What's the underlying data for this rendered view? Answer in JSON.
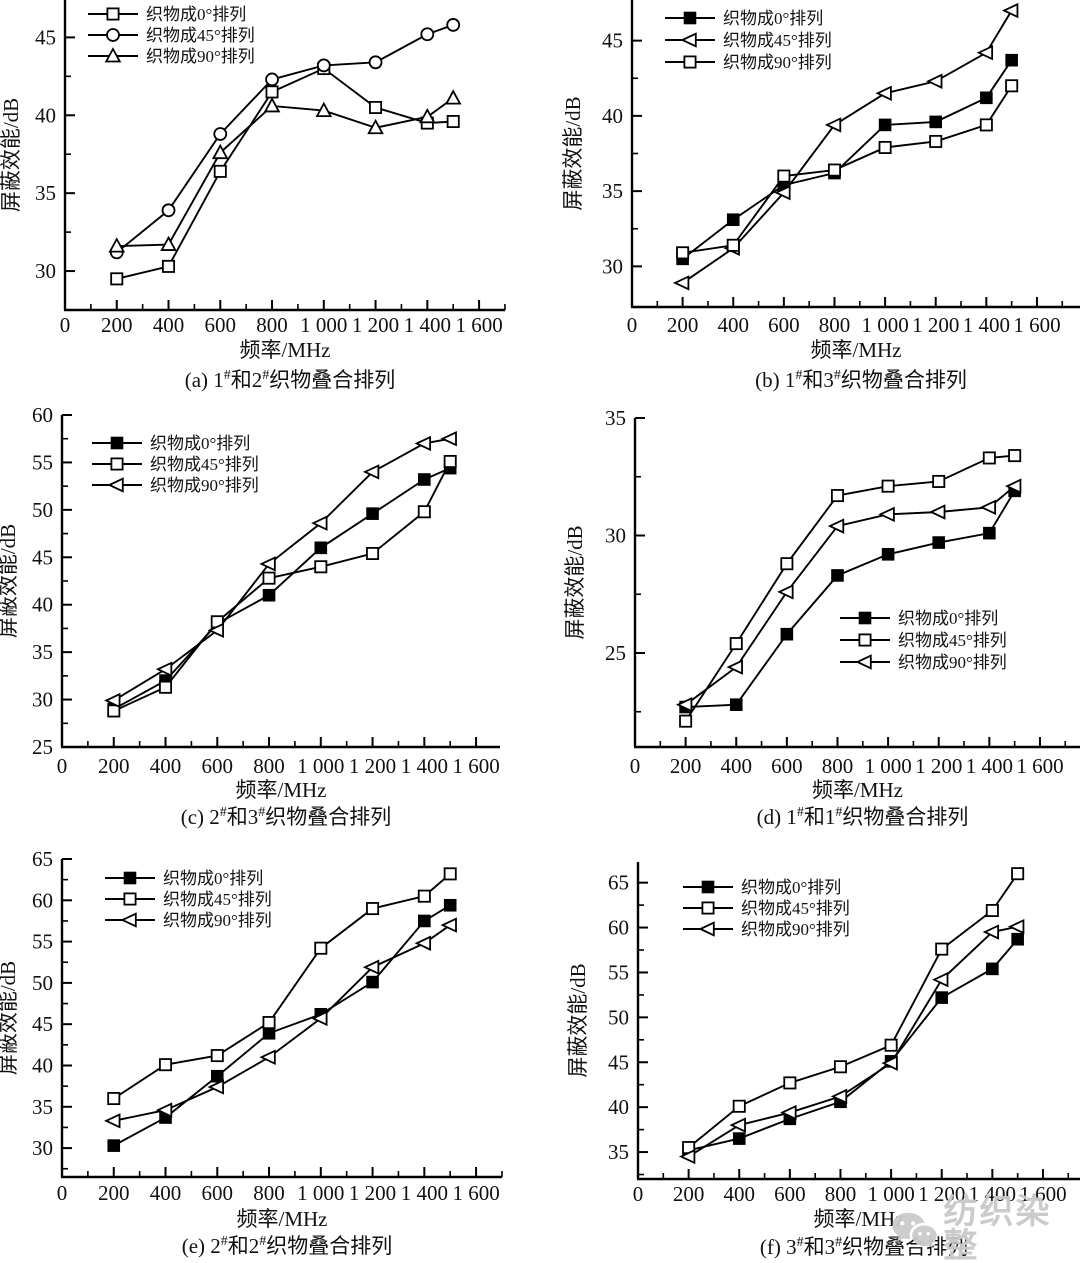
{
  "figure": {
    "background": "#ffffff",
    "ink": "#000000",
    "y_axis_label": "屏蔽效能/dB",
    "x_axis_label": "频率/MHz",
    "watermark": {
      "icon": "wechat-icon",
      "text": "纺织染整",
      "color": "#c9c9c9"
    }
  },
  "chart_data": [
    {
      "id": "a",
      "type": "line",
      "caption": "(a) 1#和2#织物叠合排列",
      "xlabel": "频率/MHz",
      "ylabel": "屏蔽效能/dB",
      "x": [
        200,
        400,
        600,
        800,
        1000,
        1200,
        1400,
        1500
      ],
      "xlim": [
        0,
        1700
      ],
      "x_ticks": {
        "values": [
          0,
          200,
          400,
          600,
          800,
          1000,
          1200,
          1400,
          1600
        ],
        "labels": [
          "0",
          "200",
          "400",
          "600",
          "800",
          "1 000",
          "1 200",
          "1 400",
          "1 600"
        ]
      },
      "ylim": [
        27.5,
        47.4
      ],
      "y_ticks": [
        30,
        35,
        40,
        45
      ],
      "grid": false,
      "legend_position": "top-left",
      "series": [
        {
          "name": "织物成0°排列",
          "marker": "square-open",
          "values": [
            29.5,
            30.3,
            36.4,
            41.5,
            43.0,
            40.5,
            39.5,
            39.6
          ]
        },
        {
          "name": "织物成45°排列",
          "marker": "circle-open",
          "values": [
            31.2,
            33.9,
            38.8,
            42.3,
            43.2,
            43.4,
            45.2,
            45.8
          ]
        },
        {
          "name": "织物成90°排列",
          "marker": "triangle-up-open",
          "values": [
            31.6,
            31.7,
            37.6,
            40.6,
            40.3,
            39.2,
            39.9,
            41.1
          ]
        }
      ]
    },
    {
      "id": "b",
      "type": "line",
      "caption": "(b) 1#和3#织物叠合排列",
      "xlabel": "频率/MHz",
      "ylabel": "屏蔽效能/dB",
      "x": [
        200,
        400,
        600,
        800,
        1000,
        1200,
        1400,
        1500
      ],
      "xlim": [
        0,
        1700
      ],
      "x_ticks": {
        "values": [
          0,
          200,
          400,
          600,
          800,
          1000,
          1200,
          1400,
          1600
        ],
        "labels": [
          "0",
          "200",
          "400",
          "600",
          "800",
          "1 000",
          "1 200",
          "1 400",
          "1 600"
        ]
      },
      "ylim": [
        27.3,
        47.7
      ],
      "y_ticks": [
        30,
        35,
        40,
        45
      ],
      "grid": false,
      "legend_position": "top-left",
      "series": [
        {
          "name": "织物成0°排列",
          "marker": "square-filled",
          "values": [
            30.5,
            33.1,
            35.4,
            36.2,
            39.4,
            39.6,
            41.2,
            43.7
          ]
        },
        {
          "name": "织物成45°排列",
          "marker": "triangle-left-open",
          "values": [
            28.9,
            31.2,
            34.9,
            39.4,
            41.5,
            42.3,
            44.2,
            47.0
          ]
        },
        {
          "name": "织物成90°排列",
          "marker": "square-open",
          "values": [
            30.9,
            31.4,
            36.0,
            36.4,
            37.9,
            38.3,
            39.4,
            42.0
          ]
        }
      ]
    },
    {
      "id": "c",
      "type": "line",
      "caption": "(c) 2#和3#织物叠合排列",
      "xlabel": "频率/MHz",
      "ylabel": "屏蔽效能/dB",
      "x": [
        200,
        400,
        600,
        800,
        1000,
        1200,
        1400,
        1500
      ],
      "xlim": [
        0,
        1700
      ],
      "x_ticks": {
        "values": [
          0,
          200,
          400,
          600,
          800,
          1000,
          1200,
          1400,
          1600
        ],
        "labels": [
          "0",
          "200",
          "400",
          "600",
          "800",
          "1 000",
          "1 200",
          "1 400",
          "1 600"
        ]
      },
      "ylim": [
        25,
        60
      ],
      "y_ticks": [
        25,
        30,
        35,
        40,
        45,
        50,
        55,
        60
      ],
      "grid": false,
      "legend_position": "top-left",
      "series": [
        {
          "name": "织物成0°排列",
          "marker": "square-filled",
          "values": [
            29.0,
            32.0,
            38.0,
            41.0,
            46.0,
            49.6,
            53.2,
            54.4
          ]
        },
        {
          "name": "织物成45°排列",
          "marker": "square-open",
          "values": [
            28.8,
            31.3,
            38.2,
            42.8,
            44.0,
            45.4,
            49.8,
            55.1
          ]
        },
        {
          "name": "织物成90°排列",
          "marker": "triangle-left-open",
          "values": [
            29.9,
            33.2,
            37.3,
            44.3,
            48.6,
            54.0,
            57.0,
            57.5
          ]
        }
      ]
    },
    {
      "id": "d",
      "type": "line",
      "caption": "(d) 1#和1#织物叠合排列",
      "xlabel": "频率/MHz",
      "ylabel": "屏蔽效能/dB",
      "x": [
        200,
        400,
        600,
        800,
        1000,
        1200,
        1400,
        1500
      ],
      "xlim": [
        0,
        1700
      ],
      "x_ticks": {
        "values": [
          0,
          200,
          400,
          600,
          800,
          1000,
          1200,
          1400,
          1600
        ],
        "labels": [
          "0",
          "200",
          "400",
          "600",
          "800",
          "1 000",
          "1 200",
          "1 400",
          "1 600"
        ]
      },
      "ylim": [
        21,
        35
      ],
      "y_ticks": [
        25,
        30,
        35
      ],
      "grid": false,
      "legend_position": "middle-right",
      "series": [
        {
          "name": "织物成0°排列",
          "marker": "square-filled",
          "values": [
            22.7,
            22.8,
            25.8,
            28.3,
            29.2,
            29.7,
            30.1,
            31.9
          ]
        },
        {
          "name": "织物成45°排列",
          "marker": "square-open",
          "values": [
            22.1,
            25.4,
            28.8,
            31.7,
            32.1,
            32.3,
            33.3,
            33.4
          ]
        },
        {
          "name": "织物成90°排列",
          "marker": "triangle-left-open",
          "values": [
            22.8,
            24.4,
            27.6,
            30.4,
            30.9,
            31.0,
            31.2,
            32.1
          ]
        }
      ]
    },
    {
      "id": "e",
      "type": "line",
      "caption": "(e) 2#和2#织物叠合排列",
      "xlabel": "频率/MHz",
      "ylabel": "屏蔽效能/dB",
      "x": [
        200,
        400,
        600,
        800,
        1000,
        1200,
        1400,
        1500
      ],
      "xlim": [
        0,
        1700
      ],
      "x_ticks": {
        "values": [
          0,
          200,
          400,
          600,
          800,
          1000,
          1200,
          1400,
          1600
        ],
        "labels": [
          "0",
          "200",
          "400",
          "600",
          "800",
          "1 000",
          "1 200",
          "1 400",
          "1 600"
        ]
      },
      "ylim": [
        26.5,
        65
      ],
      "y_ticks": [
        30,
        35,
        40,
        45,
        50,
        55,
        60,
        65
      ],
      "grid": false,
      "legend_position": "top-left",
      "series": [
        {
          "name": "织物成0°排列",
          "marker": "square-filled",
          "values": [
            30.3,
            33.7,
            38.7,
            43.9,
            46.2,
            50.1,
            57.5,
            59.4
          ]
        },
        {
          "name": "织物成45°排列",
          "marker": "square-open",
          "values": [
            36.0,
            40.1,
            41.2,
            45.2,
            54.2,
            59.0,
            60.5,
            63.2
          ]
        },
        {
          "name": "织物成90°排列",
          "marker": "triangle-left-open",
          "values": [
            33.3,
            34.6,
            37.4,
            41.0,
            45.7,
            51.9,
            54.8,
            57.0
          ]
        }
      ]
    },
    {
      "id": "f",
      "type": "line",
      "caption": "(f) 3#和3#织物叠合排列",
      "xlabel": "频率/MHz",
      "ylabel": "屏蔽效能/dB",
      "x": [
        200,
        400,
        600,
        800,
        1000,
        1200,
        1400,
        1500
      ],
      "xlim": [
        0,
        1700
      ],
      "x_ticks": {
        "values": [
          0,
          200,
          400,
          600,
          800,
          1000,
          1200,
          1400,
          1600
        ],
        "labels": [
          "0",
          "200",
          "400",
          "600",
          "800",
          "1 000",
          "1 200",
          "1 400",
          "1 600"
        ]
      },
      "ylim": [
        32,
        67.3
      ],
      "y_ticks": [
        35,
        40,
        45,
        50,
        55,
        60,
        65
      ],
      "grid": false,
      "legend_position": "top-left",
      "series": [
        {
          "name": "织物成0°排列",
          "marker": "square-filled",
          "values": [
            35.2,
            36.5,
            38.7,
            40.6,
            45.1,
            52.2,
            55.4,
            58.7
          ]
        },
        {
          "name": "织物成45°排列",
          "marker": "square-open",
          "values": [
            35.5,
            40.1,
            42.7,
            44.5,
            46.9,
            57.6,
            61.9,
            66.0
          ]
        },
        {
          "name": "织物成90°排列",
          "marker": "triangle-left-open",
          "values": [
            34.5,
            38.0,
            39.4,
            41.2,
            44.9,
            54.2,
            59.5,
            60.1
          ]
        }
      ]
    }
  ]
}
